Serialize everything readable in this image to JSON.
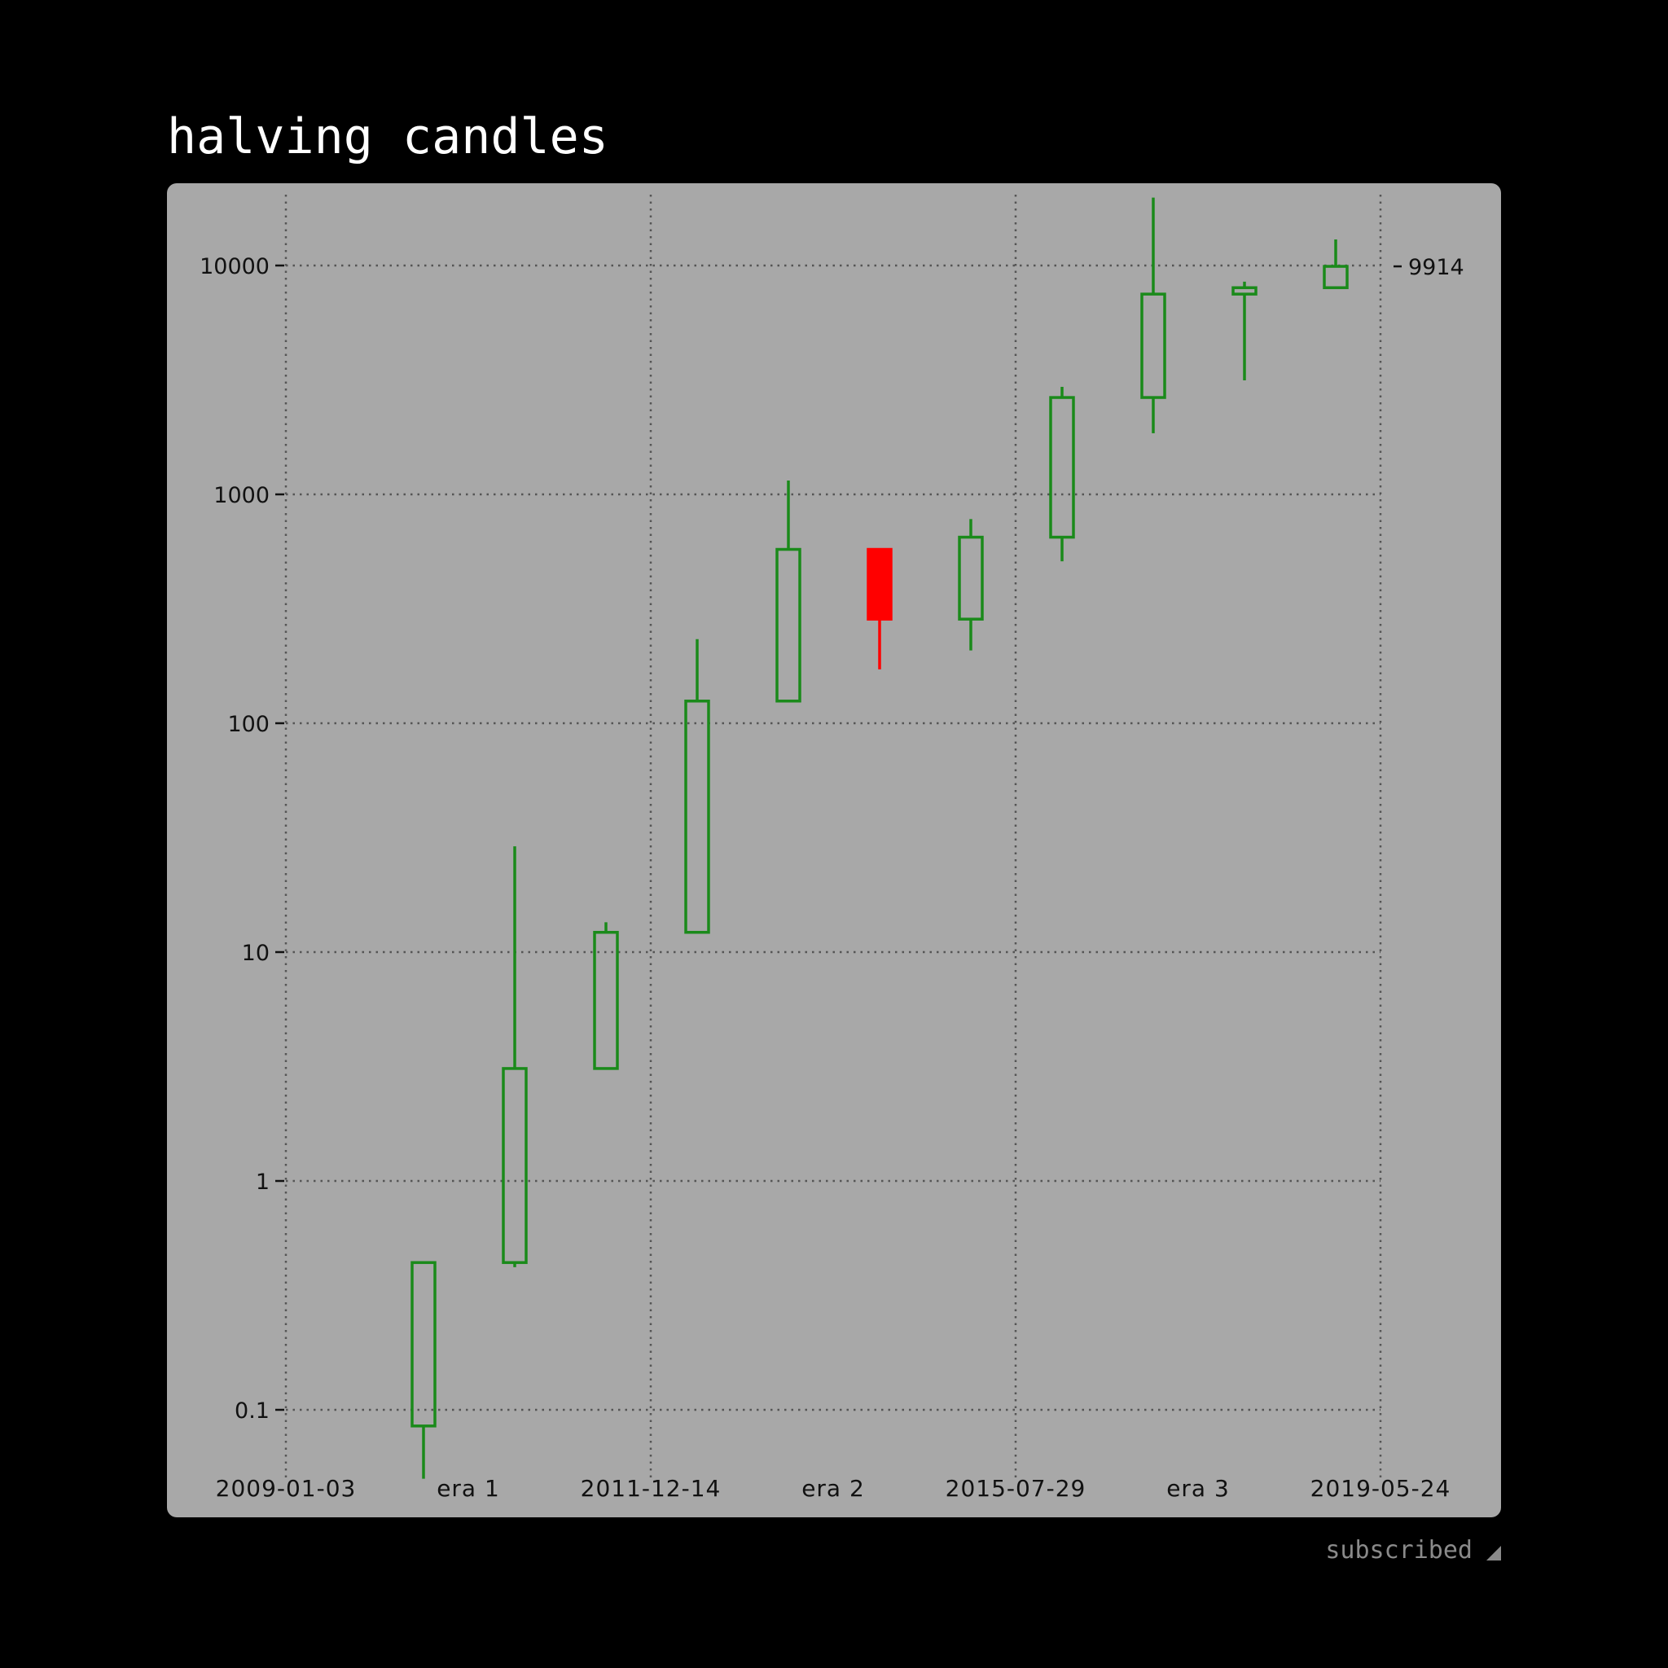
{
  "title": "halving candles",
  "status": {
    "label": "subscribed",
    "icon": "resize-corner-icon"
  },
  "colors": {
    "background": "#000000",
    "panel": "#a8a8a8",
    "up": "#1a8a1a",
    "down": "#ff0000",
    "grid": "#555555",
    "text": "#111111"
  },
  "chart_data": {
    "type": "candlestick",
    "y_scale": "log",
    "ylim": [
      0.055,
      20000
    ],
    "y_ticks": [
      {
        "value": 0.1,
        "label": "0.1"
      },
      {
        "value": 1,
        "label": "1"
      },
      {
        "value": 10,
        "label": "10"
      },
      {
        "value": 100,
        "label": "100"
      },
      {
        "value": 1000,
        "label": "1000"
      },
      {
        "value": 10000,
        "label": "10000"
      }
    ],
    "x_labels": [
      "2009-01-03",
      "era 1",
      "2011-12-14",
      "era 2",
      "2015-07-29",
      "era 3",
      "2019-05-24"
    ],
    "x_gridlines": [
      "2009-01-03",
      "2011-12-14",
      "2015-07-29",
      "2019-05-24"
    ],
    "last_value_label": "9914",
    "last_value": 9914,
    "grid": true,
    "candles": [
      {
        "open": 0.085,
        "high": 0.44,
        "low": 0.05,
        "close": 0.44,
        "direction": "up"
      },
      {
        "open": 0.44,
        "high": 29,
        "low": 0.42,
        "close": 3.1,
        "direction": "up"
      },
      {
        "open": 3.1,
        "high": 13.5,
        "low": 3.1,
        "close": 12.2,
        "direction": "up"
      },
      {
        "open": 12.2,
        "high": 233,
        "low": 12.2,
        "close": 125,
        "direction": "up"
      },
      {
        "open": 125,
        "high": 1150,
        "low": 125,
        "close": 575,
        "direction": "up"
      },
      {
        "open": 575,
        "high": 575,
        "low": 172,
        "close": 285,
        "direction": "down"
      },
      {
        "open": 285,
        "high": 780,
        "low": 208,
        "close": 650,
        "direction": "up"
      },
      {
        "open": 650,
        "high": 2950,
        "low": 510,
        "close": 2650,
        "direction": "up"
      },
      {
        "open": 2650,
        "high": 19800,
        "low": 1850,
        "close": 7500,
        "direction": "up"
      },
      {
        "open": 7500,
        "high": 8500,
        "low": 3150,
        "close": 8000,
        "direction": "up"
      },
      {
        "open": 8000,
        "high": 13000,
        "low": 8000,
        "close": 9914,
        "direction": "up"
      }
    ]
  }
}
